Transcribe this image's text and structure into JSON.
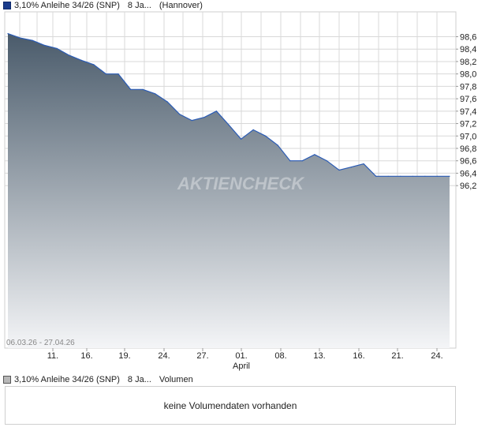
{
  "legend": {
    "series_name": "3,10% Anleihe 34/26 (SNP)",
    "other_series": "8 Ja...",
    "exchange": "(Hannover)"
  },
  "volume_legend": {
    "series_name": "3,10% Anleihe 34/26 (SNP)",
    "other_series": "8 Ja...",
    "label": "Volumen"
  },
  "date_range": "06.03.26 - 27.04.26",
  "volume_message": "keine Volumendaten vorhanden",
  "watermark": "AKTIENCHECK",
  "colors": {
    "line": "#2a5bb5",
    "fill_top": "#4a5b6b",
    "fill_bottom": "#f4f5f7",
    "grid": "#d8d8d8"
  },
  "chart_data": {
    "type": "area",
    "series": [
      {
        "name": "3,10% Anleihe 34/26 (SNP)",
        "x": [
          "06.03.26",
          "09.03.26",
          "10.03.26",
          "11.03.26",
          "12.03.26",
          "13.03.26",
          "16.03.26",
          "17.03.26",
          "18.03.26",
          "19.03.26",
          "20.03.26",
          "23.03.26",
          "24.03.26",
          "25.03.26",
          "26.03.26",
          "27.03.26",
          "30.03.26",
          "31.03.26",
          "01.04.26",
          "02.04.26",
          "03.04.26",
          "06.04.26",
          "07.04.26",
          "08.04.26",
          "09.04.26",
          "10.04.26",
          "13.04.26",
          "14.04.26",
          "15.04.26",
          "16.04.26",
          "17.04.26",
          "20.04.26",
          "21.04.26",
          "22.04.26",
          "23.04.26",
          "24.04.26",
          "27.04.26"
        ],
        "values": [
          98.65,
          98.58,
          98.54,
          98.46,
          98.41,
          98.3,
          98.22,
          98.15,
          98.0,
          98.0,
          97.75,
          97.75,
          97.68,
          97.55,
          97.35,
          97.25,
          97.3,
          97.4,
          97.18,
          96.95,
          97.1,
          97.0,
          96.85,
          96.6,
          96.6,
          96.7,
          96.6,
          96.45,
          96.5,
          96.55,
          96.35,
          96.35,
          96.35,
          96.35,
          96.35,
          96.35,
          96.35
        ]
      }
    ],
    "x_ticks": [
      "11.",
      "16.",
      "19.",
      "24.",
      "27.",
      "01.",
      "08.",
      "13.",
      "16.",
      "21.",
      "24."
    ],
    "x_tick_month": "April",
    "y_ticks": [
      "98,6",
      "98,4",
      "98,2",
      "98,0",
      "97,8",
      "97,6",
      "97,4",
      "97,2",
      "97,0",
      "96,8",
      "96,6",
      "96,4",
      "96,2"
    ],
    "y_tick_values": [
      98.6,
      98.4,
      98.2,
      98.0,
      97.8,
      97.6,
      97.4,
      97.2,
      97.0,
      96.8,
      96.6,
      96.4,
      96.2
    ],
    "ylim": [
      96.1,
      98.7
    ],
    "grid": true,
    "title": "",
    "xlabel": "",
    "ylabel": ""
  }
}
